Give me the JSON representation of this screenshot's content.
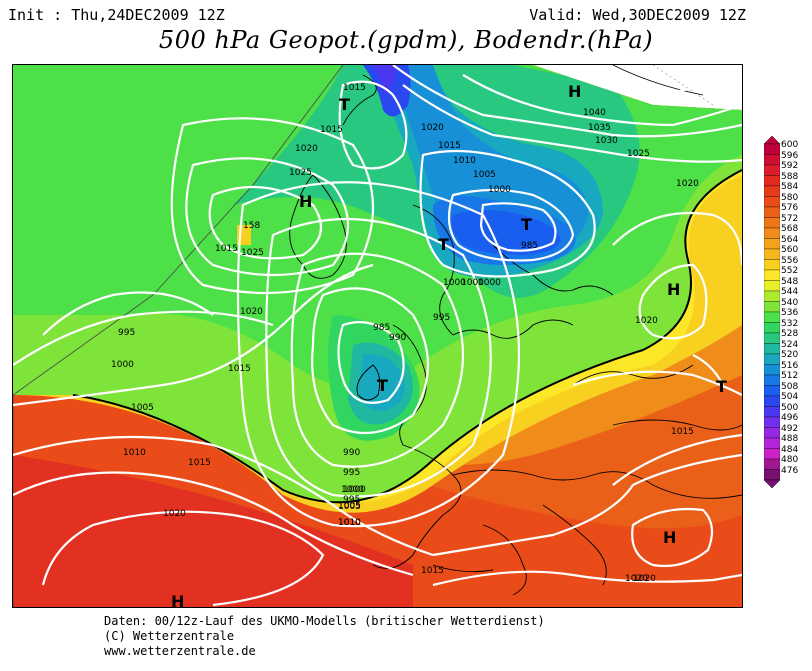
{
  "header": {
    "init": "Init : Thu,24DEC2009 12Z",
    "valid": "Valid: Wed,30DEC2009 12Z",
    "title": "500 hPa Geopot.(gpdm), Bodendr.(hPa)"
  },
  "legend": {
    "values": [
      "600",
      "596",
      "592",
      "588",
      "584",
      "580",
      "576",
      "572",
      "568",
      "564",
      "560",
      "556",
      "552",
      "548",
      "544",
      "540",
      "536",
      "532",
      "528",
      "524",
      "520",
      "516",
      "512",
      "508",
      "504",
      "500",
      "496",
      "492",
      "488",
      "484",
      "480",
      "476"
    ],
    "colors": [
      "#c0003a",
      "#cf0e34",
      "#dc1c2a",
      "#e32a20",
      "#e63a1a",
      "#e94c18",
      "#eb6018",
      "#ee7618",
      "#f08c1a",
      "#f2a21c",
      "#f4b81e",
      "#f8d020",
      "#fce628",
      "#e8f02a",
      "#b0ea30",
      "#7ee43a",
      "#4ee048",
      "#30d660",
      "#28c880",
      "#20b8a0",
      "#18a8c0",
      "#1890d8",
      "#1878e8",
      "#1a5ef0",
      "#2a48f0",
      "#4a38f0",
      "#7030ec",
      "#9428e4",
      "#b424d8",
      "#cc20c8",
      "#a01890",
      "#7a1070"
    ]
  },
  "map_labels": {
    "isobars": [
      "1015",
      "1015",
      "1020",
      "1020",
      "1025",
      "1025",
      "1015",
      "1010",
      "1005",
      "1000",
      "1020",
      "995",
      "1000",
      "1015",
      "1005",
      "1010",
      "1015",
      "1020",
      "1010",
      "1005",
      "1000",
      "995",
      "990",
      "985",
      "995",
      "1000",
      "1000",
      "1000",
      "990",
      "995",
      "1000",
      "1005",
      "1010",
      "1015",
      "1020",
      "1040",
      "1035",
      "1030",
      "1025",
      "1020",
      "1020",
      "1015",
      "1015",
      "1020",
      "985",
      "158"
    ],
    "centers": [
      "T",
      "H",
      "T",
      "T",
      "T",
      "H",
      "H",
      "T",
      "H",
      "H"
    ]
  },
  "footer": {
    "line1": "Daten: 00/12z-Lauf des UKMO-Modells (britischer Wetterdienst)",
    "line2": "(C) Wetterzentrale",
    "line3": "www.wetterzentrale.de"
  }
}
